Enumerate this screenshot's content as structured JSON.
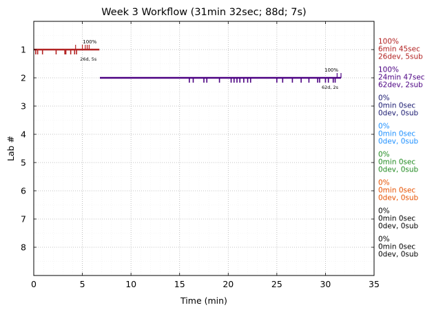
{
  "chart_data": {
    "type": "timeline",
    "title": "Week 3 Workflow (31min 32sec; 88d; 7s)",
    "xlabel": "Time (min)",
    "ylabel": "Lab #",
    "xlim": [
      0,
      35
    ],
    "ylim": [
      9,
      0
    ],
    "xticks": [
      0,
      5,
      10,
      15,
      20,
      25,
      30,
      35
    ],
    "yticks": [
      1,
      2,
      3,
      4,
      5,
      6,
      7,
      8
    ],
    "grid": true,
    "labs": [
      {
        "lab": 1,
        "color": "#b22222",
        "start": 0,
        "end": 6.75,
        "dev_ticks": [
          0.2,
          0.4,
          0.9,
          2.3,
          3.2,
          3.3,
          3.8,
          4.2,
          4.4
        ],
        "sub_ticks": [
          4.3,
          5.0,
          5.3,
          5.5,
          5.7
        ],
        "bar_label": "100%",
        "bar_sublabel": "26d, 5s",
        "right_lines": [
          "100%",
          "6min 45sec",
          "26dev, 5sub"
        ]
      },
      {
        "lab": 2,
        "color": "#4b0082",
        "start": 6.8,
        "end": 31.6,
        "dev_ticks": [
          16.0,
          16.4,
          17.5,
          17.8,
          19.1,
          20.3,
          20.6,
          20.9,
          21.2,
          21.6,
          22.0,
          22.3,
          25.0,
          25.6,
          26.6,
          27.5,
          28.3,
          29.2,
          29.4,
          30.0,
          30.3,
          30.8,
          31.0
        ],
        "sub_ticks": [
          31.2,
          31.6
        ],
        "bar_label": "100%",
        "bar_sublabel": "62d, 2s",
        "right_lines": [
          "100%",
          "24min 47sec",
          "62dev, 2sub"
        ]
      },
      {
        "lab": 3,
        "color": "#191970",
        "start": null,
        "end": null,
        "dev_ticks": [],
        "sub_ticks": [],
        "bar_label": "",
        "bar_sublabel": "",
        "right_lines": [
          "0%",
          "0min 0sec",
          "0dev, 0sub"
        ]
      },
      {
        "lab": 4,
        "color": "#1e90ff",
        "start": null,
        "end": null,
        "dev_ticks": [],
        "sub_ticks": [],
        "bar_label": "",
        "bar_sublabel": "",
        "right_lines": [
          "0%",
          "0min 0sec",
          "0dev, 0sub"
        ]
      },
      {
        "lab": 5,
        "color": "#228b22",
        "start": null,
        "end": null,
        "dev_ticks": [],
        "sub_ticks": [],
        "bar_label": "",
        "bar_sublabel": "",
        "right_lines": [
          "0%",
          "0min 0sec",
          "0dev, 0sub"
        ]
      },
      {
        "lab": 6,
        "color": "#e65100",
        "start": null,
        "end": null,
        "dev_ticks": [],
        "sub_ticks": [],
        "bar_label": "",
        "bar_sublabel": "",
        "right_lines": [
          "0%",
          "0min 0sec",
          "0dev, 0sub"
        ]
      },
      {
        "lab": 7,
        "color": "#000000",
        "start": null,
        "end": null,
        "dev_ticks": [],
        "sub_ticks": [],
        "bar_label": "",
        "bar_sublabel": "",
        "right_lines": [
          "0%",
          "0min 0sec",
          "0dev, 0sub"
        ]
      },
      {
        "lab": 8,
        "color": "#000000",
        "start": null,
        "end": null,
        "dev_ticks": [],
        "sub_ticks": [],
        "bar_label": "",
        "bar_sublabel": "",
        "right_lines": [
          "0%",
          "0min 0sec",
          "0dev, 0sub"
        ]
      }
    ]
  }
}
